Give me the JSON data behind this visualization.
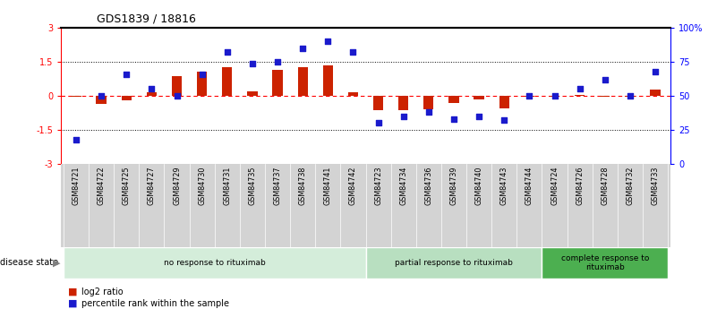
{
  "title": "GDS1839 / 18816",
  "samples": [
    "GSM84721",
    "GSM84722",
    "GSM84725",
    "GSM84727",
    "GSM84729",
    "GSM84730",
    "GSM84731",
    "GSM84735",
    "GSM84737",
    "GSM84738",
    "GSM84741",
    "GSM84742",
    "GSM84723",
    "GSM84734",
    "GSM84736",
    "GSM84739",
    "GSM84740",
    "GSM84743",
    "GSM84744",
    "GSM84724",
    "GSM84726",
    "GSM84728",
    "GSM84732",
    "GSM84733"
  ],
  "log2_ratio": [
    -0.05,
    -0.35,
    -0.2,
    0.15,
    0.85,
    1.05,
    1.25,
    0.2,
    1.15,
    1.25,
    1.35,
    0.15,
    -0.65,
    -0.65,
    -0.6,
    -0.3,
    -0.15,
    -0.55,
    -0.05,
    -0.05,
    0.05,
    -0.05,
    -0.05,
    0.28
  ],
  "percentile": [
    18,
    50,
    66,
    55,
    50,
    66,
    82,
    74,
    75,
    85,
    90,
    82,
    30,
    35,
    38,
    33,
    35,
    32,
    50,
    50,
    55,
    62,
    50,
    68
  ],
  "groups": [
    {
      "label": "no response to rituximab",
      "start": 0,
      "end": 11,
      "color": "#d4edda"
    },
    {
      "label": "partial response to rituximab",
      "start": 12,
      "end": 18,
      "color": "#b8dfc0"
    },
    {
      "label": "complete response to\nrituximab",
      "start": 19,
      "end": 23,
      "color": "#4caf50"
    }
  ],
  "ylim_left": [
    -3,
    3
  ],
  "ylim_right": [
    0,
    100
  ],
  "yticks_left": [
    -3,
    -1.5,
    0,
    1.5,
    3
  ],
  "yticks_right": [
    0,
    25,
    50,
    75,
    100
  ],
  "ytick_labels_right": [
    "0",
    "25",
    "50",
    "75",
    "100%"
  ],
  "bar_color": "#cc2200",
  "dot_color": "#1a1acc",
  "bg_color": "#ffffff",
  "panel_bg": "#d3d3d3",
  "legend_items": [
    "log2 ratio",
    "percentile rank within the sample"
  ]
}
